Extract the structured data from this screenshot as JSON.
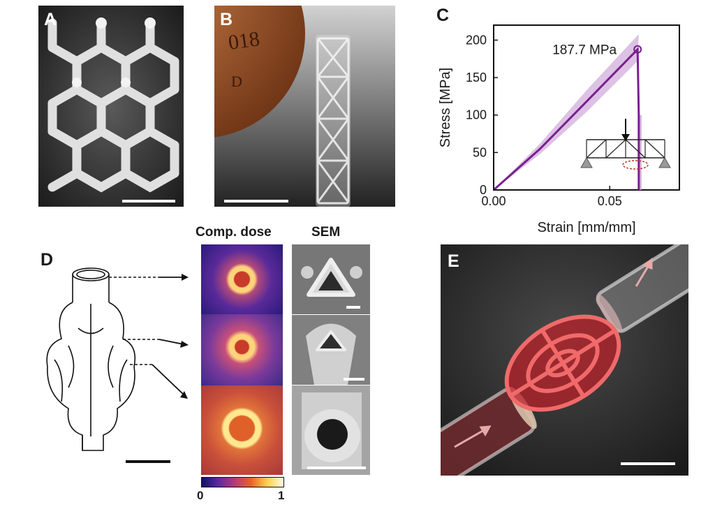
{
  "panels": {
    "a": {
      "letter": "A"
    },
    "b": {
      "letter": "B",
      "coin_text": "018",
      "coin_mint": "D"
    },
    "c": {
      "letter": "C"
    },
    "d": {
      "letter": "D",
      "dose_heading": "Comp. dose",
      "sem_heading": "SEM",
      "colorbar_min": "0",
      "colorbar_max": "1"
    },
    "e": {
      "letter": "E"
    }
  },
  "colors": {
    "series_line": "#7a1f8f",
    "series_band": "#c9a2d6",
    "scalebar_light": "#ffffff",
    "scalebar_dark": "#111111"
  },
  "chart_data": {
    "type": "line",
    "xlabel": "Strain [mm/mm]",
    "ylabel": "Stress [MPa]",
    "xlim": [
      0,
      0.08
    ],
    "ylim": [
      0,
      220
    ],
    "xticks": [
      0.0,
      0.05
    ],
    "xtick_labels": [
      "0.00",
      "0.05"
    ],
    "yticks": [
      0,
      50,
      100,
      150,
      200
    ],
    "ytick_labels": [
      "0",
      "50",
      "100",
      "150",
      "200"
    ],
    "series": [
      {
        "points": [
          [
            0,
            0
          ],
          [
            0.02,
            55
          ],
          [
            0.04,
            118
          ],
          [
            0.062,
            187.7
          ],
          [
            0.0625,
            100
          ],
          [
            0.0625,
            0
          ]
        ],
        "band_upper": [
          [
            0,
            0
          ],
          [
            0.02,
            62
          ],
          [
            0.04,
            133
          ],
          [
            0.0625,
            208
          ]
        ],
        "band_lower": [
          [
            0,
            0
          ],
          [
            0.02,
            48
          ],
          [
            0.04,
            104
          ],
          [
            0.062,
            172
          ]
        ]
      }
    ],
    "annotation": {
      "text": "187.7 MPa",
      "x": 0.062,
      "y": 187.7
    },
    "grid": false
  }
}
